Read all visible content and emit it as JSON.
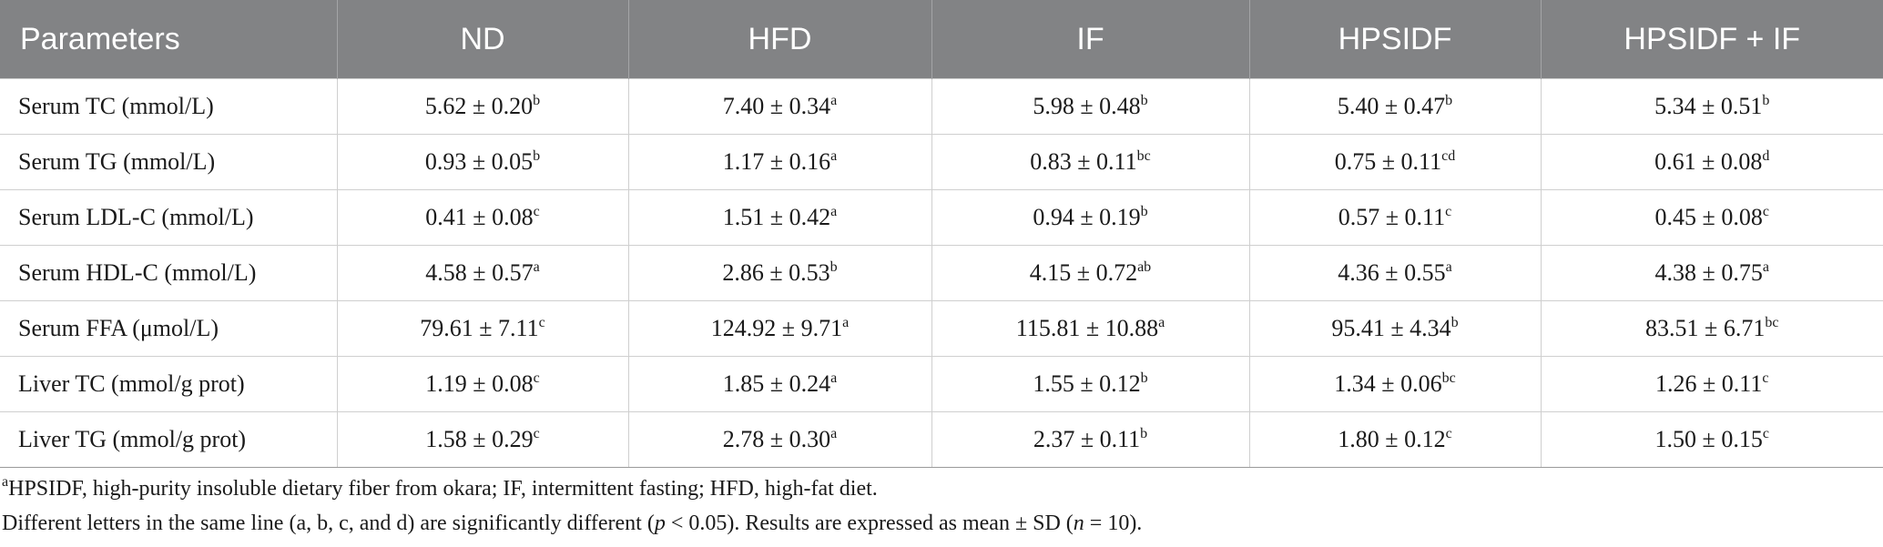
{
  "table": {
    "headers": [
      "Parameters",
      "ND",
      "HFD",
      "IF",
      "HPSIDF",
      "HPSIDF + IF"
    ],
    "rows": [
      {
        "label": "Serum TC (mmol/L)",
        "cells": [
          {
            "v": "5.62 ± 0.20",
            "s": "b"
          },
          {
            "v": "7.40 ± 0.34",
            "s": "a"
          },
          {
            "v": "5.98 ± 0.48",
            "s": "b"
          },
          {
            "v": "5.40 ± 0.47",
            "s": "b"
          },
          {
            "v": "5.34 ± 0.51",
            "s": "b"
          }
        ]
      },
      {
        "label": "Serum TG (mmol/L)",
        "cells": [
          {
            "v": "0.93 ± 0.05",
            "s": "b"
          },
          {
            "v": "1.17 ± 0.16",
            "s": "a"
          },
          {
            "v": "0.83 ± 0.11",
            "s": "bc"
          },
          {
            "v": "0.75 ± 0.11",
            "s": "cd"
          },
          {
            "v": "0.61 ± 0.08",
            "s": "d"
          }
        ]
      },
      {
        "label": "Serum LDL-C (mmol/L)",
        "cells": [
          {
            "v": "0.41 ± 0.08",
            "s": "c"
          },
          {
            "v": "1.51 ± 0.42",
            "s": "a"
          },
          {
            "v": "0.94 ± 0.19",
            "s": "b"
          },
          {
            "v": "0.57 ± 0.11",
            "s": "c"
          },
          {
            "v": "0.45 ± 0.08",
            "s": "c"
          }
        ]
      },
      {
        "label": "Serum HDL-C (mmol/L)",
        "cells": [
          {
            "v": "4.58 ± 0.57",
            "s": "a"
          },
          {
            "v": "2.86 ± 0.53",
            "s": "b"
          },
          {
            "v": "4.15 ± 0.72",
            "s": "ab"
          },
          {
            "v": "4.36 ± 0.55",
            "s": "a"
          },
          {
            "v": "4.38 ± 0.75",
            "s": "a"
          }
        ]
      },
      {
        "label": "Serum FFA (μmol/L)",
        "cells": [
          {
            "v": "79.61 ± 7.11",
            "s": "c"
          },
          {
            "v": "124.92 ± 9.71",
            "s": "a"
          },
          {
            "v": "115.81 ± 10.88",
            "s": "a"
          },
          {
            "v": "95.41 ± 4.34",
            "s": "b"
          },
          {
            "v": "83.51 ± 6.71",
            "s": "bc"
          }
        ]
      },
      {
        "label": "Liver TC (mmol/g prot)",
        "cells": [
          {
            "v": "1.19 ± 0.08",
            "s": "c"
          },
          {
            "v": "1.85 ± 0.24",
            "s": "a"
          },
          {
            "v": "1.55 ± 0.12",
            "s": "b"
          },
          {
            "v": "1.34 ± 0.06",
            "s": "bc"
          },
          {
            "v": "1.26 ± 0.11",
            "s": "c"
          }
        ]
      },
      {
        "label": "Liver TG (mmol/g prot)",
        "cells": [
          {
            "v": "1.58 ± 0.29",
            "s": "c"
          },
          {
            "v": "2.78 ± 0.30",
            "s": "a"
          },
          {
            "v": "2.37 ± 0.11",
            "s": "b"
          },
          {
            "v": "1.80 ± 0.12",
            "s": "c"
          },
          {
            "v": "1.50 ± 0.15",
            "s": "c"
          }
        ]
      }
    ]
  },
  "footnotes": {
    "note1_sup": "a",
    "note1_text": "HPSIDF, high-purity insoluble dietary fiber from okara; IF, intermittent fasting; HFD, high-fat diet.",
    "note2_part1": "Different letters in the same line (a, b, c, and d) are significantly different (",
    "note2_p": "p",
    "note2_part2": " < 0.05). Results are expressed as mean ± SD (",
    "note2_n": "n",
    "note2_part3": " = 10)."
  }
}
